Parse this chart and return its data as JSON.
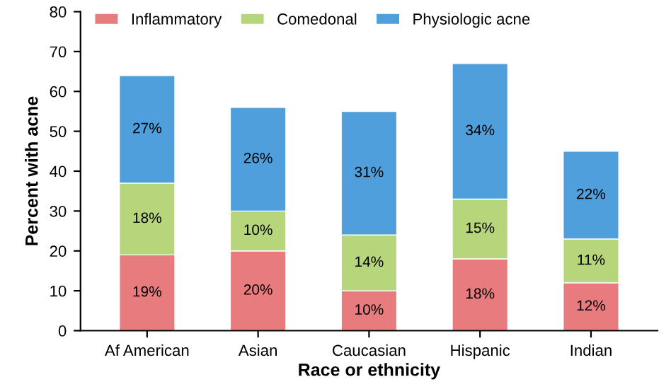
{
  "chart_data": {
    "type": "bar",
    "stacked": true,
    "xlabel": "Race or ethnicity",
    "ylabel": "Percent with acne",
    "categories": [
      "Af American",
      "Asian",
      "Caucasian",
      "Hispanic",
      "Indian"
    ],
    "series": [
      {
        "name": "Inflammatory",
        "color": "#e77b7d",
        "values": [
          19,
          20,
          10,
          18,
          12
        ],
        "value_labels": [
          "19%",
          "20%",
          "10%",
          "18%",
          "12%"
        ]
      },
      {
        "name": "Comedonal",
        "color": "#b7d67c",
        "values": [
          18,
          10,
          14,
          15,
          11
        ],
        "value_labels": [
          "18%",
          "10%",
          "14%",
          "15%",
          "11%"
        ]
      },
      {
        "name": "Physiologic acne",
        "color": "#4e9fdc",
        "values": [
          27,
          26,
          31,
          34,
          22
        ],
        "value_labels": [
          "27%",
          "26%",
          "31%",
          "34%",
          "22%"
        ]
      }
    ],
    "ylim": [
      0,
      80
    ],
    "yticks": [
      0,
      10,
      20,
      30,
      40,
      50,
      60,
      70,
      80
    ],
    "grid": false,
    "legend": "top left"
  }
}
